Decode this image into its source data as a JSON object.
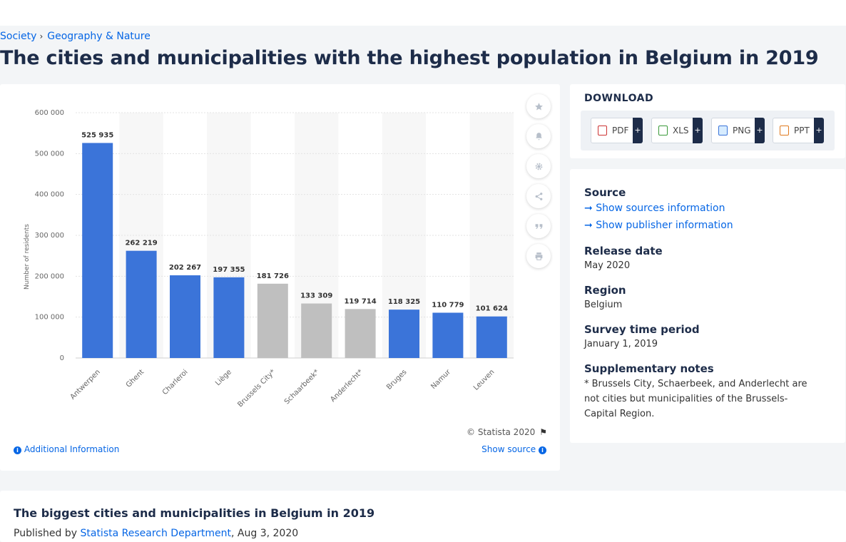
{
  "breadcrumb": {
    "items": [
      "Society",
      "Geography & Nature"
    ]
  },
  "page_title": "The cities and municipalities with the highest population in Belgium in 2019",
  "chart_data": {
    "type": "bar",
    "title": "",
    "xlabel": "",
    "ylabel": "Number of residents",
    "ylim": [
      0,
      600000
    ],
    "yticks": [
      "0",
      "100 000",
      "200 000",
      "300 000",
      "400 000",
      "500 000",
      "600 000"
    ],
    "grid": true,
    "categories": [
      "Antwerpen",
      "Ghent",
      "Charleroi",
      "Liège",
      "Brussels City*",
      "Schaarbeek*",
      "Anderlecht*",
      "Bruges",
      "Namur",
      "Leuven"
    ],
    "values": [
      525935,
      262219,
      202267,
      197355,
      181726,
      133309,
      119714,
      118325,
      110779,
      101624
    ],
    "value_labels": [
      "525 935",
      "262 219",
      "202 267",
      "197 355",
      "181 726",
      "133 309",
      "119 714",
      "118 325",
      "110 779",
      "101 624"
    ],
    "highlighted": [
      false,
      false,
      false,
      false,
      true,
      true,
      true,
      false,
      false,
      false
    ],
    "colors": {
      "primary": "#3b74d9",
      "highlight": "#bfbfbf"
    }
  },
  "chart_icons": [
    "star-icon",
    "bell-icon",
    "gear-icon",
    "share-icon",
    "quote-icon",
    "print-icon"
  ],
  "copyright": "© Statista 2020",
  "additional_info": "Additional Information",
  "show_source": "Show source",
  "download": {
    "title": "DOWNLOAD",
    "buttons": [
      "PDF",
      "XLS",
      "PNG",
      "PPT"
    ],
    "plus": "+"
  },
  "info": {
    "source_label": "Source",
    "show_sources": "Show sources information",
    "show_publisher": "Show publisher information",
    "release_label": "Release date",
    "release_value": "May 2020",
    "region_label": "Region",
    "region_value": "Belgium",
    "survey_label": "Survey time period",
    "survey_value": "January 1, 2019",
    "notes_label": "Supplementary notes",
    "notes_value": "* Brussels City, Schaerbeek, and Anderlecht are not cities but municipalities of the Brussels-Capital Region."
  },
  "bottom": {
    "title": "The biggest cities and municipalities in Belgium in 2019",
    "published_by": "Published by",
    "author": "Statista Research Department",
    "date": ", Aug 3, 2020"
  }
}
